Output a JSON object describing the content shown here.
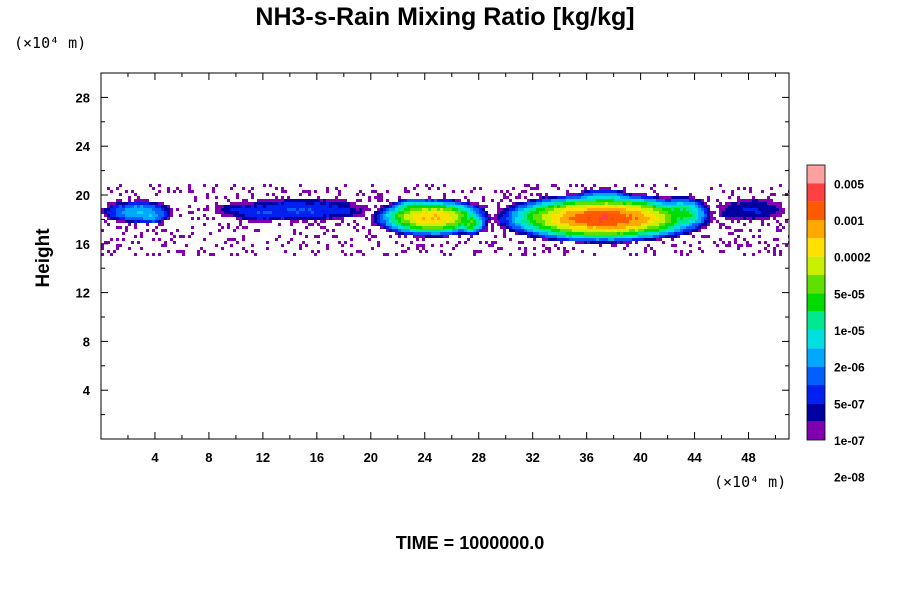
{
  "chart_data": {
    "type": "heatmap",
    "title": "NH3-s-Rain Mixing Ratio [kg/kg]",
    "ylabel": "Height",
    "x_unit": "(×10⁴ m)",
    "y_unit": "(×10⁴ m)",
    "footer": "TIME = 1000000.0",
    "xlim": [
      0,
      51
    ],
    "ylim": [
      0,
      30
    ],
    "x_ticks": [
      "4",
      "8",
      "12",
      "16",
      "20",
      "24",
      "28",
      "32",
      "36",
      "40",
      "44",
      "48"
    ],
    "x_tick_values": [
      4,
      8,
      12,
      16,
      20,
      24,
      28,
      32,
      36,
      40,
      44,
      48
    ],
    "y_ticks": [
      "4",
      "8",
      "12",
      "16",
      "20",
      "24",
      "28"
    ],
    "y_tick_values": [
      4,
      8,
      12,
      16,
      20,
      24,
      28
    ],
    "colorbar": {
      "colors": [
        "#ffa0a0",
        "#ff4040",
        "#ff5a00",
        "#ffa800",
        "#ffe000",
        "#c8f000",
        "#60e000",
        "#00dc00",
        "#00e890",
        "#00e0e0",
        "#00a8ff",
        "#0060ff",
        "#0020f0",
        "#0000a0",
        "#8000b0"
      ],
      "labels": [
        "0.005",
        "0.001",
        "0.0002",
        "5e-05",
        "1e-05",
        "2e-06",
        "5e-07",
        "1e-07",
        "2e-08"
      ]
    },
    "regions": [
      {
        "x": [
          0,
          5.5
        ],
        "y": [
          17.6,
          19.6
        ],
        "peak_level": 4
      },
      {
        "x": [
          9.5,
          20
        ],
        "y": [
          17.8,
          19.8
        ],
        "peak_level": 2
      },
      {
        "x": [
          20,
          29
        ],
        "y": [
          16.5,
          19.8
        ],
        "peak_level": 10
      },
      {
        "x": [
          29,
          45.5
        ],
        "y": [
          16.0,
          20.2
        ],
        "peak_level": 12
      },
      {
        "x": [
          45.5,
          51
        ],
        "y": [
          17.8,
          19.8
        ],
        "peak_level": 1
      }
    ]
  }
}
